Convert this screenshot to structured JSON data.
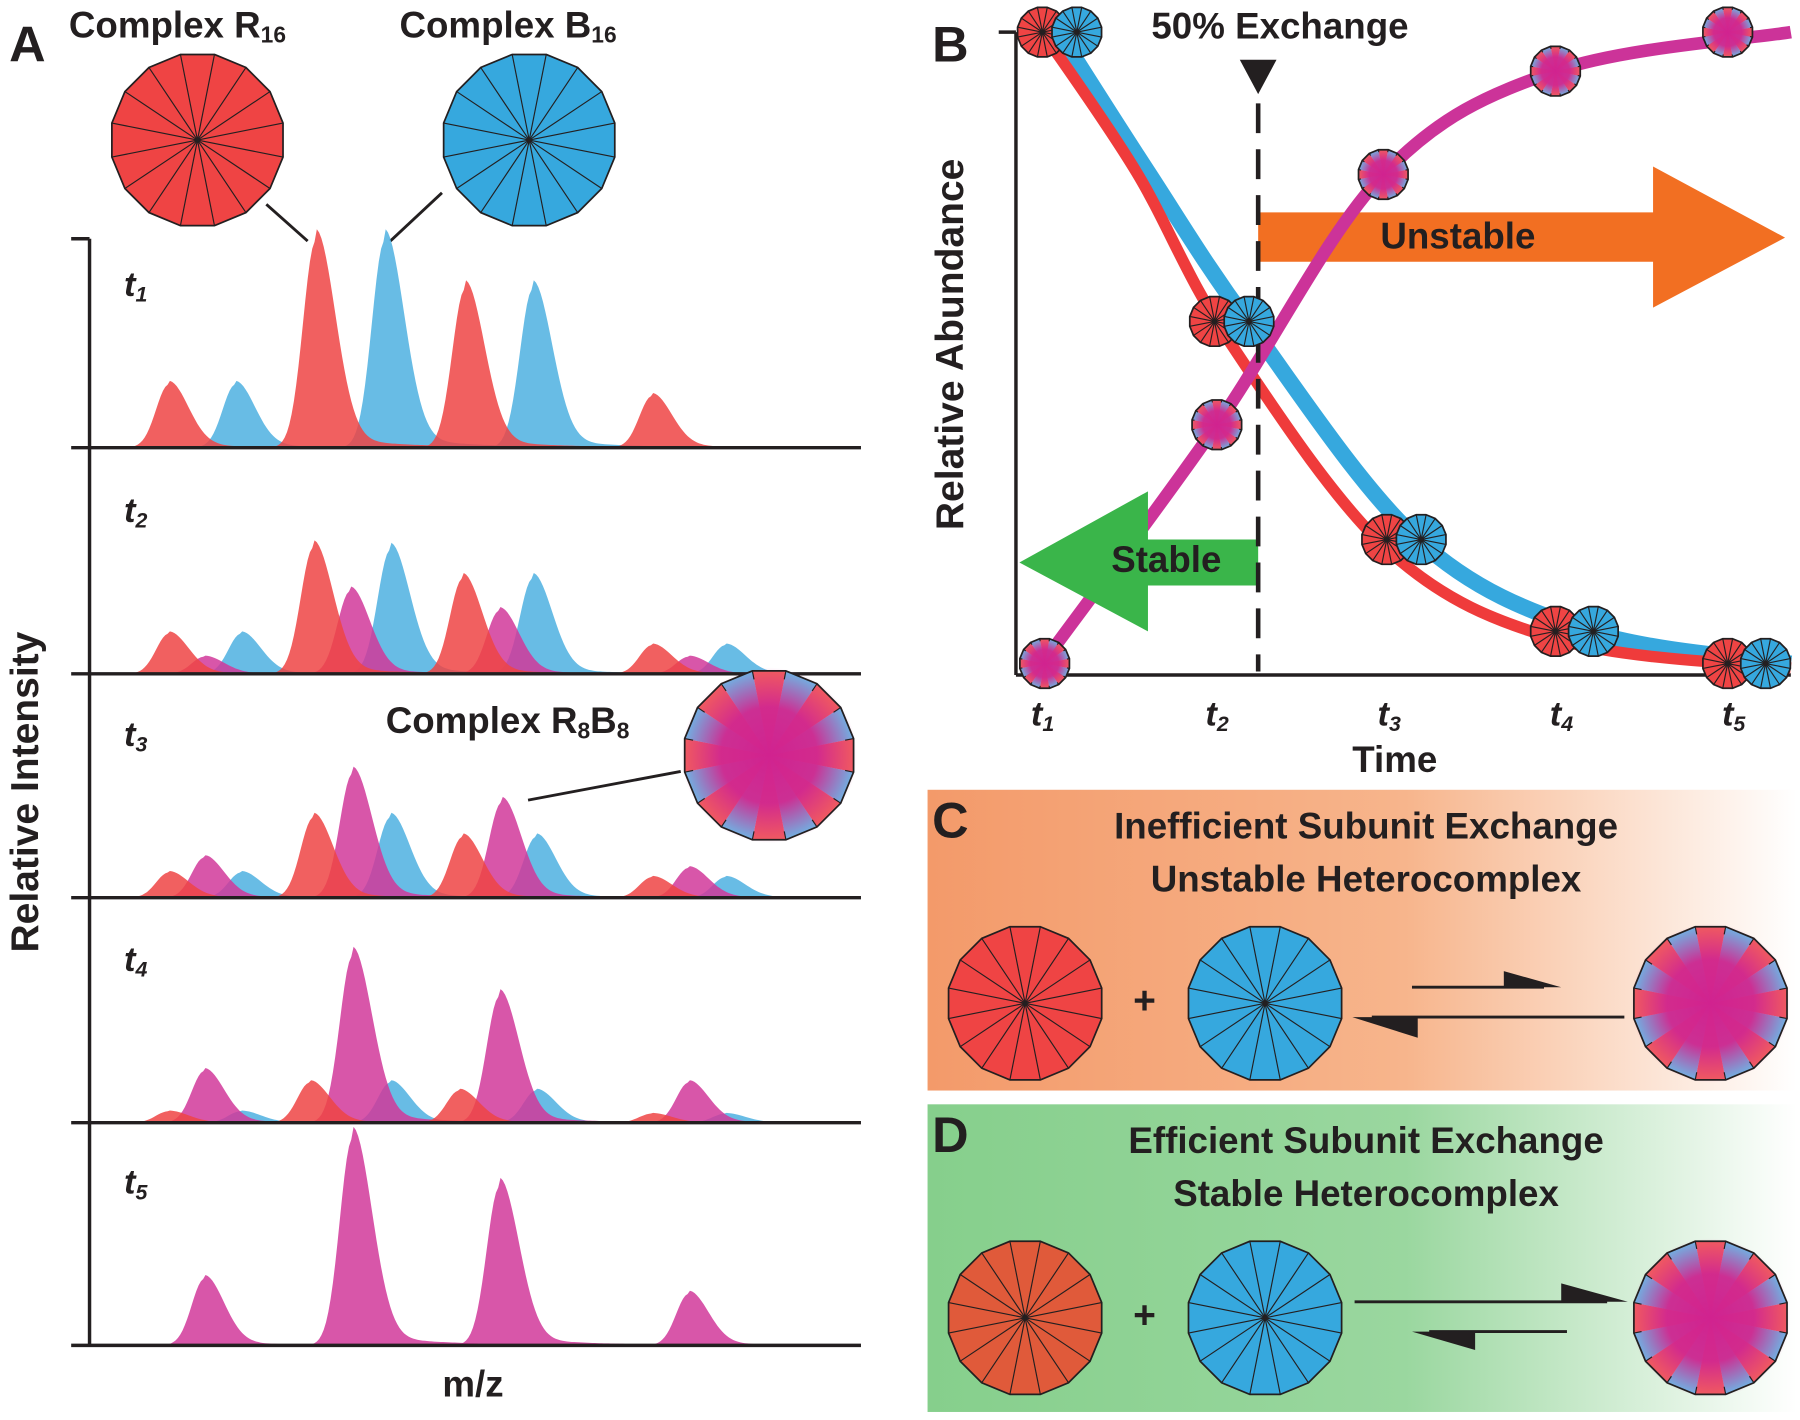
{
  "panel_a": {
    "label": "A",
    "complex_r": {
      "text": "Complex R",
      "sub": "16"
    },
    "complex_b": {
      "text": "Complex B",
      "sub": "16"
    },
    "complex_rb": [
      {
        "text": "Complex R",
        "sub": "8"
      },
      {
        "text": "B",
        "sub": "8"
      }
    ],
    "time_labels": [
      {
        "text": "t",
        "sub": "1"
      },
      {
        "text": "t",
        "sub": "2"
      },
      {
        "text": "t",
        "sub": "3"
      },
      {
        "text": "t",
        "sub": "4"
      },
      {
        "text": "t",
        "sub": "5"
      }
    ],
    "y_label": "Relative Intensity",
    "x_label": "m/z"
  },
  "panel_b": {
    "label": "B",
    "annotation": "50% Exchange",
    "unstable": "Unstable",
    "stable": "Stable",
    "y_label": "Relative Abundance",
    "x_label": "Time",
    "time_labels": [
      {
        "text": "t",
        "sub": "1"
      },
      {
        "text": "t",
        "sub": "2"
      },
      {
        "text": "t",
        "sub": "3"
      },
      {
        "text": "t",
        "sub": "4"
      },
      {
        "text": "t",
        "sub": "5"
      }
    ]
  },
  "panel_c": {
    "label": "C",
    "title_lines": [
      "Inefficient Subunit Exchange",
      "Unstable Heterocomplex"
    ],
    "plus": "+"
  },
  "panel_d": {
    "label": "D",
    "title_lines": [
      "Efficient Subunit Exchange",
      "Stable Heterocomplex"
    ],
    "plus": "+"
  }
}
